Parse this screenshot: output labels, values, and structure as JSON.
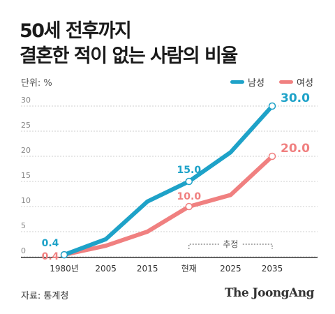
{
  "title_line1": "50세 전후까지",
  "title_line2": "결혼한 적이 없는 사람의 비율",
  "unit_label": "단위: %",
  "source": "자료: 통계청",
  "brand": "The JoongAng",
  "chart_data": {
    "type": "line",
    "categories": [
      "1980년",
      "2005",
      "2015",
      "현재",
      "2025",
      "2035"
    ],
    "ylim": [
      0,
      30
    ],
    "yticks": [
      "0",
      "5",
      "10",
      "15",
      "20",
      "25",
      "30"
    ],
    "grid": true,
    "legend_position": "top-right",
    "series": [
      {
        "name": "남성",
        "color": "#1ea2c8",
        "values": [
          0.4,
          3.5,
          11,
          15,
          20.8,
          30
        ],
        "labels": {
          "0": "0.4",
          "3": "15.0",
          "5": "30.0"
        }
      },
      {
        "name": "여성",
        "color": "#f08080",
        "values": [
          0.4,
          2.2,
          5,
          10,
          12.3,
          20
        ],
        "labels": {
          "0": "0.4",
          "3": "10.0",
          "5": "20.0"
        }
      }
    ],
    "annotation": {
      "text": "추정",
      "from": "현재",
      "to": "2035"
    }
  }
}
